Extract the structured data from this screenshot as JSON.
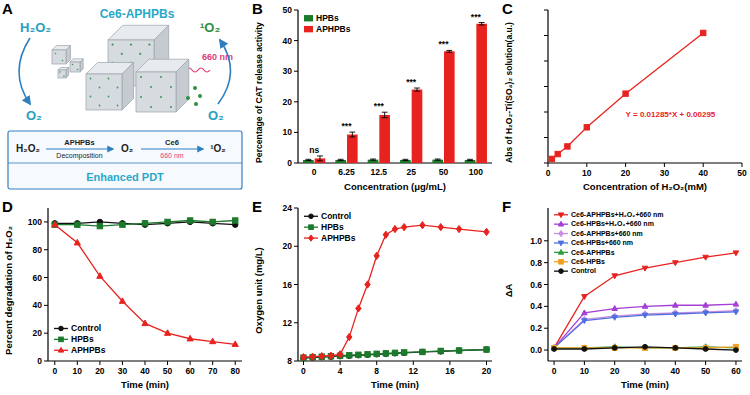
{
  "panels": [
    "A",
    "B",
    "C",
    "D",
    "E",
    "F"
  ],
  "diagram": {
    "title": "Ce6-APHPBs",
    "left_in": "H₂O₂",
    "left_out": "O₂",
    "right_in": "O₂",
    "right_out": "¹O₂",
    "light": "660 nm",
    "scheme": {
      "steps": [
        "H₂O₂",
        "O₂",
        "¹O₂"
      ],
      "arrows": [
        {
          "above": "APHPBs",
          "below": "Decomposition"
        },
        {
          "above": "Ce6",
          "below": "660 nm"
        }
      ]
    },
    "footer": "Enhanced PDT"
  },
  "chart_data": [
    {
      "type": "bar",
      "x_label": "Concentration (μg/mL)",
      "y_label": "Percentage of CAT release activity",
      "categories": [
        "0",
        "6.25",
        "12.5",
        "25",
        "50",
        "100"
      ],
      "series": [
        {
          "name": "HPBs",
          "color": "#1b7a2b",
          "values": [
            1.0,
            1.0,
            1.1,
            1.0,
            1.1,
            1.0
          ],
          "errors": [
            0.2,
            0.2,
            0.2,
            0.2,
            0.2,
            0.2
          ]
        },
        {
          "name": "APHPBs",
          "color": "#e8231f",
          "values": [
            1.5,
            9.3,
            15.7,
            24.0,
            36.5,
            45.5
          ],
          "errors": [
            0.8,
            0.8,
            0.9,
            0.5,
            0.3,
            0.4
          ]
        }
      ],
      "ylim": [
        0,
        50
      ],
      "yticks": [
        0,
        10,
        20,
        30,
        40,
        50
      ],
      "legend": "upper left",
      "annotations": [
        "ns",
        "***",
        "***",
        "***",
        "***",
        "***"
      ]
    },
    {
      "type": "line",
      "x_label": "Concentration of H₂O₂(mM)",
      "y_label": "Abs of H₂O₂-Ti(SO₄)₂ solution(a.u.)",
      "x": [
        1,
        2.5,
        5,
        10,
        20,
        40
      ],
      "series": [
        {
          "name": "Abs",
          "color": "#e8231f",
          "marker": "square",
          "values": [
            0.016,
            0.035,
            0.065,
            0.14,
            0.272,
            0.51
          ]
        }
      ],
      "xlim": [
        0,
        50
      ],
      "xticks": [
        0,
        10,
        20,
        30,
        40,
        50
      ],
      "ylim": [
        0,
        0.6
      ],
      "yticks": [
        0,
        0.1,
        0.2,
        0.3,
        0.4,
        0.5,
        0.6
      ],
      "tick_labels": "x",
      "annotations": [
        "Y = 0.01285*X + 0.00295"
      ]
    },
    {
      "type": "line",
      "x_label": "Time (min)",
      "y_label": "Percent degradation of H₂O₂",
      "x": [
        0,
        10,
        20,
        30,
        40,
        50,
        60,
        70,
        80
      ],
      "series": [
        {
          "name": "Control",
          "color": "#111111",
          "marker": "circle",
          "values": [
            99,
            99,
            100,
            99,
            98,
            99,
            100,
            99,
            98
          ]
        },
        {
          "name": "HPBs",
          "color": "#1b7a2b",
          "marker": "square",
          "values": [
            98,
            98,
            97,
            98,
            99,
            100,
            101,
            100,
            101
          ]
        },
        {
          "name": "APHPBs",
          "color": "#e8231f",
          "marker": "triangle",
          "values": [
            98,
            85,
            61,
            43,
            27,
            20,
            16,
            14,
            12
          ]
        }
      ],
      "xlim": [
        -3,
        83
      ],
      "xticks": [
        0,
        10,
        20,
        30,
        40,
        50,
        60,
        70,
        80
      ],
      "ylim": [
        0,
        110
      ],
      "yticks": [
        0,
        20,
        40,
        60,
        80,
        100
      ],
      "legend": "lower left"
    },
    {
      "type": "line",
      "x_label": "Time (min)",
      "y_label": "Oxygen unit (mg/L)",
      "x": [
        0,
        1,
        2,
        3,
        4,
        5,
        6,
        7,
        8,
        9,
        10,
        11,
        13,
        15,
        17,
        20
      ],
      "series": [
        {
          "name": "Control",
          "color": "#111111",
          "marker": "circle",
          "values": [
            8.3,
            8.35,
            8.4,
            8.45,
            8.5,
            8.55,
            8.6,
            8.65,
            8.7,
            8.75,
            8.8,
            8.85,
            8.95,
            9.0,
            9.1,
            9.2
          ]
        },
        {
          "name": "HPBs",
          "color": "#1b7a2b",
          "marker": "square",
          "values": [
            8.35,
            8.4,
            8.45,
            8.5,
            8.55,
            8.6,
            8.65,
            8.7,
            8.75,
            8.8,
            8.85,
            8.9,
            8.95,
            9.05,
            9.1,
            9.2
          ]
        },
        {
          "name": "APHPBs",
          "color": "#e8231f",
          "marker": "diamond",
          "values": [
            8.4,
            8.45,
            8.5,
            8.55,
            8.7,
            10.5,
            13.5,
            16.0,
            19.0,
            21.2,
            21.8,
            22.0,
            22.2,
            22.0,
            21.8,
            21.5
          ]
        }
      ],
      "xlim": [
        -0.6,
        20.6
      ],
      "xticks": [
        0,
        4,
        8,
        12,
        16,
        20
      ],
      "ylim": [
        8,
        24
      ],
      "yticks": [
        8,
        12,
        16,
        20,
        24
      ],
      "legend": "upper left"
    },
    {
      "type": "line",
      "x_label": "Time (min)",
      "y_label": "ΔA",
      "x": [
        0,
        10,
        20,
        30,
        40,
        50,
        60
      ],
      "series": [
        {
          "name": "Ce6-APHPBs+H₂O₂+660 nm",
          "color": "#e8231f",
          "marker": "triangle-down",
          "values": [
            0.02,
            0.49,
            0.68,
            0.75,
            0.8,
            0.85,
            0.89
          ]
        },
        {
          "name": "Ce6-HPBs+H₂O₂+660 nm",
          "color": "#a43fd6",
          "marker": "triangle",
          "values": [
            0.02,
            0.34,
            0.38,
            0.4,
            0.41,
            0.41,
            0.42
          ]
        },
        {
          "name": "Ce6-APHPBs+660 nm",
          "color": "#c98ee0",
          "marker": "diamond",
          "values": [
            0.02,
            0.28,
            0.31,
            0.33,
            0.34,
            0.35,
            0.36
          ]
        },
        {
          "name": "Ce6-HPBs+660 nm",
          "color": "#4e6fe0",
          "marker": "triangle-down",
          "values": [
            0.02,
            0.27,
            0.3,
            0.32,
            0.33,
            0.34,
            0.35
          ]
        },
        {
          "name": "Ce6-APHPBs",
          "color": "#2e9e3c",
          "marker": "triangle",
          "values": [
            0.02,
            0.02,
            0.03,
            0.02,
            0.02,
            0.03,
            0.02
          ]
        },
        {
          "name": "Ce6-HPBs",
          "color": "#f0a020",
          "marker": "square",
          "values": [
            0.02,
            0.02,
            0.02,
            0.02,
            0.02,
            0.02,
            0.03
          ]
        },
        {
          "name": "Control",
          "color": "#111111",
          "marker": "circle",
          "values": [
            0.01,
            0.01,
            0.02,
            0.03,
            0.02,
            0.01,
            0.0
          ]
        }
      ],
      "xlim": [
        -2,
        62
      ],
      "xticks": [
        0,
        10,
        20,
        30,
        40,
        50,
        60
      ],
      "ylim": [
        -0.1,
        1.3
      ],
      "yticks": [
        {
          "value": 0,
          "label": "0.0"
        },
        0.2,
        0.4,
        0.6,
        0.8,
        {
          "value": 1,
          "label": "1.0"
        }
      ],
      "legend": "upper left"
    }
  ]
}
